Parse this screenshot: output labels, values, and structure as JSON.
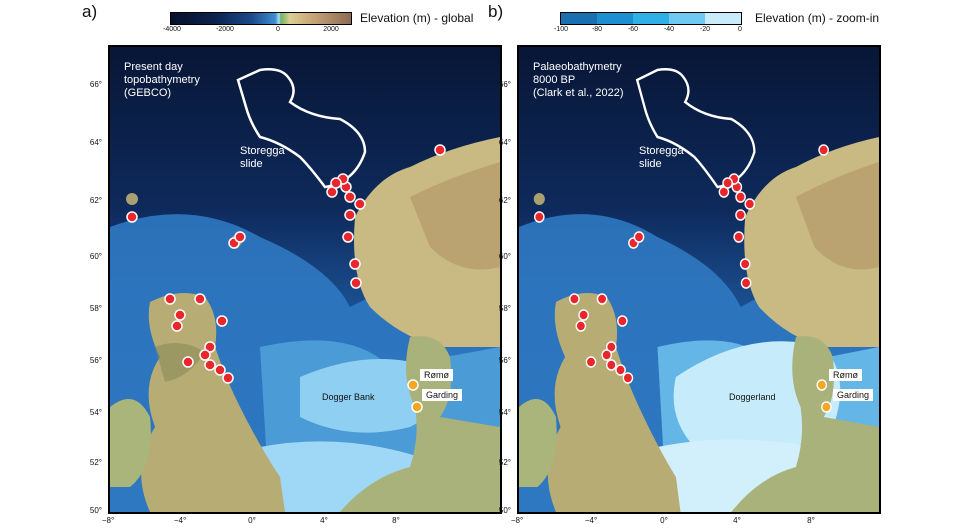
{
  "panels": [
    {
      "letter": "a)",
      "colorbar_label": "Elevation (m) - global",
      "colorbar_ticks": [
        "-4000",
        "-2000",
        "0",
        "2000"
      ],
      "info_lines": [
        "Present day",
        "topobathymetry",
        "(GEBCO)"
      ],
      "slide_label": [
        "Storegga",
        "slide"
      ],
      "region_label": "Dogger Bank",
      "site_labels": [
        "Rømø",
        "Garding"
      ]
    },
    {
      "letter": "b)",
      "colorbar_label": "Elevation (m) - zoom-in",
      "colorbar_ticks": [
        "-100",
        "-80",
        "-60",
        "-40",
        "-20",
        "0"
      ],
      "info_lines": [
        "Palaeobathymetry",
        "8000 BP",
        "(Clark et al., 2022)"
      ],
      "slide_label": [
        "Storegga",
        "slide"
      ],
      "region_label": "Doggerland",
      "site_labels": [
        "Rømø",
        "Garding"
      ]
    }
  ],
  "axes": {
    "lat_labels": [
      "66°",
      "64°",
      "62°",
      "60°",
      "58°",
      "56°",
      "54°",
      "52°",
      "50°"
    ],
    "lon_labels": [
      "−8°",
      "−4°",
      "0°",
      "4°",
      "8°"
    ]
  },
  "colors": {
    "deep_ocean": "#0b1a3d",
    "shelf": "#3e8fd0",
    "shallow": "#b9e7fb",
    "land": "#c8b982",
    "site_red": "#e8262b",
    "site_orange": "#f5a623",
    "slide_outline": "#ffffff"
  }
}
